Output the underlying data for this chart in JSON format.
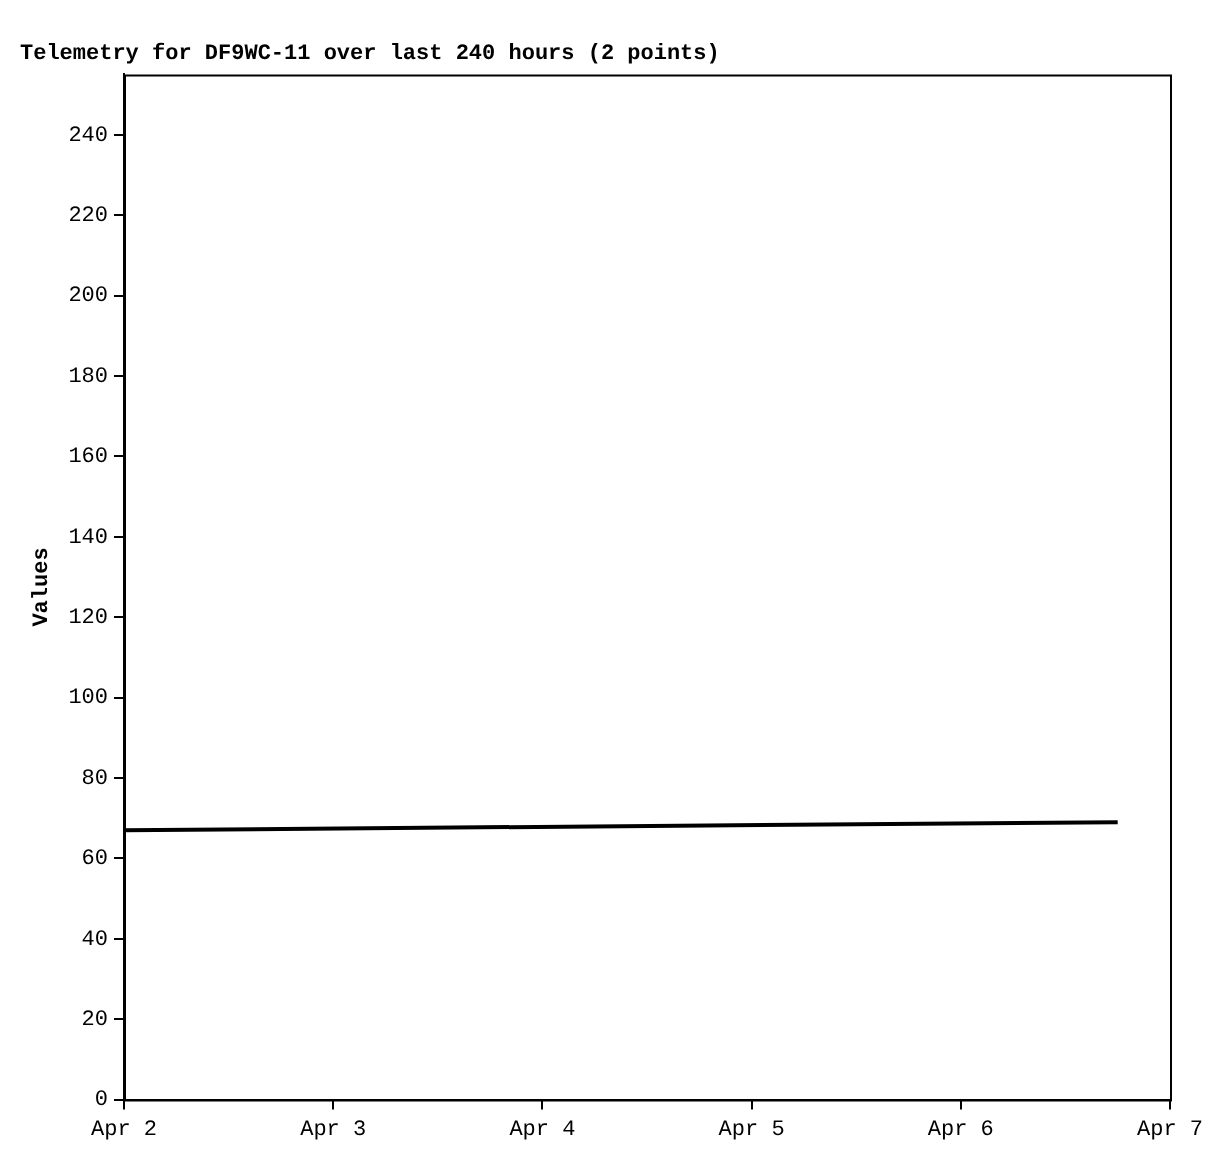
{
  "chart_data": {
    "type": "line",
    "title": "Telemetry for DF9WC-11 over last 240 hours (2 points)",
    "ylabel": "Values",
    "x": [
      "--04-02T00:00",
      "--04-06T18:00"
    ],
    "series": [
      {
        "color": "#000000",
        "values": [
          67,
          69
        ]
      }
    ],
    "xlim": [
      "--04-02",
      "--04-07"
    ],
    "xticks": [
      {
        "value": "--04-02",
        "label": "Apr 2"
      },
      {
        "value": "--04-03",
        "label": "Apr 3"
      },
      {
        "value": "--04-04",
        "label": "Apr 4"
      },
      {
        "value": "--04-05",
        "label": "Apr 5"
      },
      {
        "value": "--04-06",
        "label": "Apr 6"
      },
      {
        "value": "--04-07",
        "label": "Apr 7"
      }
    ],
    "ylim": [
      0,
      255
    ],
    "yticks": [
      0,
      20,
      40,
      60,
      80,
      100,
      120,
      140,
      160,
      180,
      200,
      220,
      240
    ],
    "grid": false,
    "legend": false,
    "marker": "none",
    "line_style": "solid"
  }
}
